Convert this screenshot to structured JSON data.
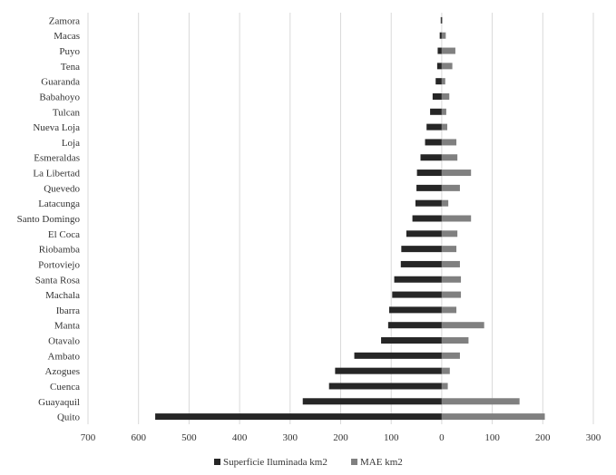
{
  "chart_data": {
    "type": "bar",
    "orientation": "horizontal",
    "categories": [
      "Zamora",
      "Macas",
      "Puyo",
      "Tena",
      "Guaranda",
      "Babahoyo",
      "Tulcan",
      "Nueva Loja",
      "Loja",
      "Esmeraldas",
      "La Libertad",
      "Quevedo",
      "Latacunga",
      "Santo Domingo",
      "El Coca",
      "Riobamba",
      "Portoviejo",
      "Santa Rosa",
      "Machala",
      "Ibarra",
      "Manta",
      "Otavalo",
      "Ambato",
      "Azogues",
      "Cuenca",
      "Guayaquil",
      "Quito"
    ],
    "series": [
      {
        "name": "Superficie Iluminada km2",
        "color": "#262626",
        "values": [
          -2,
          -4,
          -8,
          -9,
          -12,
          -18,
          -23,
          -30,
          -33,
          -42,
          -49,
          -50,
          -52,
          -58,
          -70,
          -80,
          -81,
          -94,
          -98,
          -104,
          -106,
          -120,
          -173,
          -211,
          -223,
          -275,
          -567
        ]
      },
      {
        "name": "MAE km2",
        "color": "#808080",
        "values": [
          0,
          8,
          27,
          21,
          7,
          15,
          9,
          11,
          29,
          31,
          58,
          36,
          13,
          58,
          31,
          29,
          36,
          38,
          38,
          29,
          84,
          53,
          36,
          16,
          12,
          154,
          204
        ]
      }
    ],
    "xlim": [
      -700,
      300
    ],
    "xticks": [
      -700,
      -600,
      -500,
      -400,
      -300,
      -200,
      -100,
      0,
      100,
      200,
      300
    ],
    "xtick_labels": [
      "700",
      "600",
      "500",
      "400",
      "300",
      "200",
      "100",
      "0",
      "100",
      "200",
      "300"
    ],
    "grid": "vertical",
    "legend": "bottom"
  }
}
